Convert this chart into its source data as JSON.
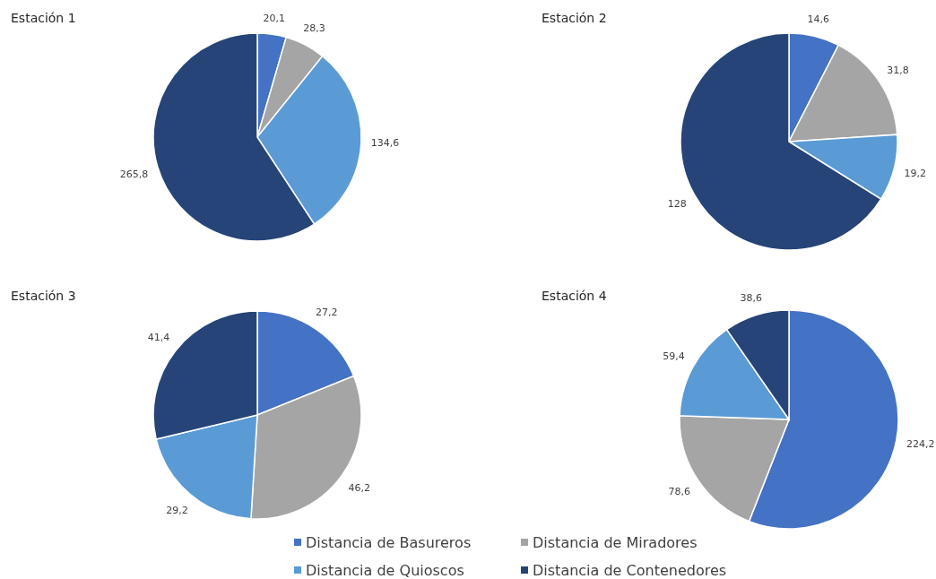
{
  "chart_data": [
    {
      "type": "pie",
      "title": "Estación 1",
      "categories": [
        "Distancia de Basureros",
        "Distancia de Miradores",
        "Distancia de Quioscos",
        "Distancia de Contenedores"
      ],
      "values": [
        20.1,
        28.3,
        134.6,
        265.8
      ],
      "value_labels": [
        "20,1",
        "28,3",
        "134,6",
        "265,8"
      ],
      "colors": [
        "#4472c4",
        "#a5a5a5",
        "#5b9bd5",
        "#264478"
      ],
      "legend": "bottom"
    },
    {
      "type": "pie",
      "title": "Estación 2",
      "categories": [
        null,
        null,
        null,
        null
      ],
      "values": [
        14.6,
        31.8,
        19.2,
        128
      ],
      "value_labels": [
        "14,6",
        "31,8",
        "19,2",
        "128"
      ],
      "colors": [
        "#4472c4",
        "#a5a5a5",
        "#5b9bd5",
        "#264478"
      ]
    },
    {
      "type": "pie",
      "title": "Estación 3",
      "categories": [
        null,
        null,
        null,
        null
      ],
      "values": [
        27.2,
        46.2,
        29.2,
        41.4
      ],
      "value_labels": [
        "27,2",
        "46,2",
        "29,2",
        "41,4"
      ],
      "colors": [
        "#4472c4",
        "#a5a5a5",
        "#5b9bd5",
        "#264478"
      ]
    },
    {
      "type": "pie",
      "title": "Estación 4",
      "categories": [
        null,
        null,
        null,
        null
      ],
      "values": [
        224.2,
        78.6,
        59.4,
        38.6
      ],
      "value_labels": [
        "224,2",
        "78,6",
        "59,4",
        "38,6"
      ],
      "colors": [
        "#4472c4",
        "#a5a5a5",
        "#5b9bd5",
        "#264478"
      ]
    }
  ]
}
